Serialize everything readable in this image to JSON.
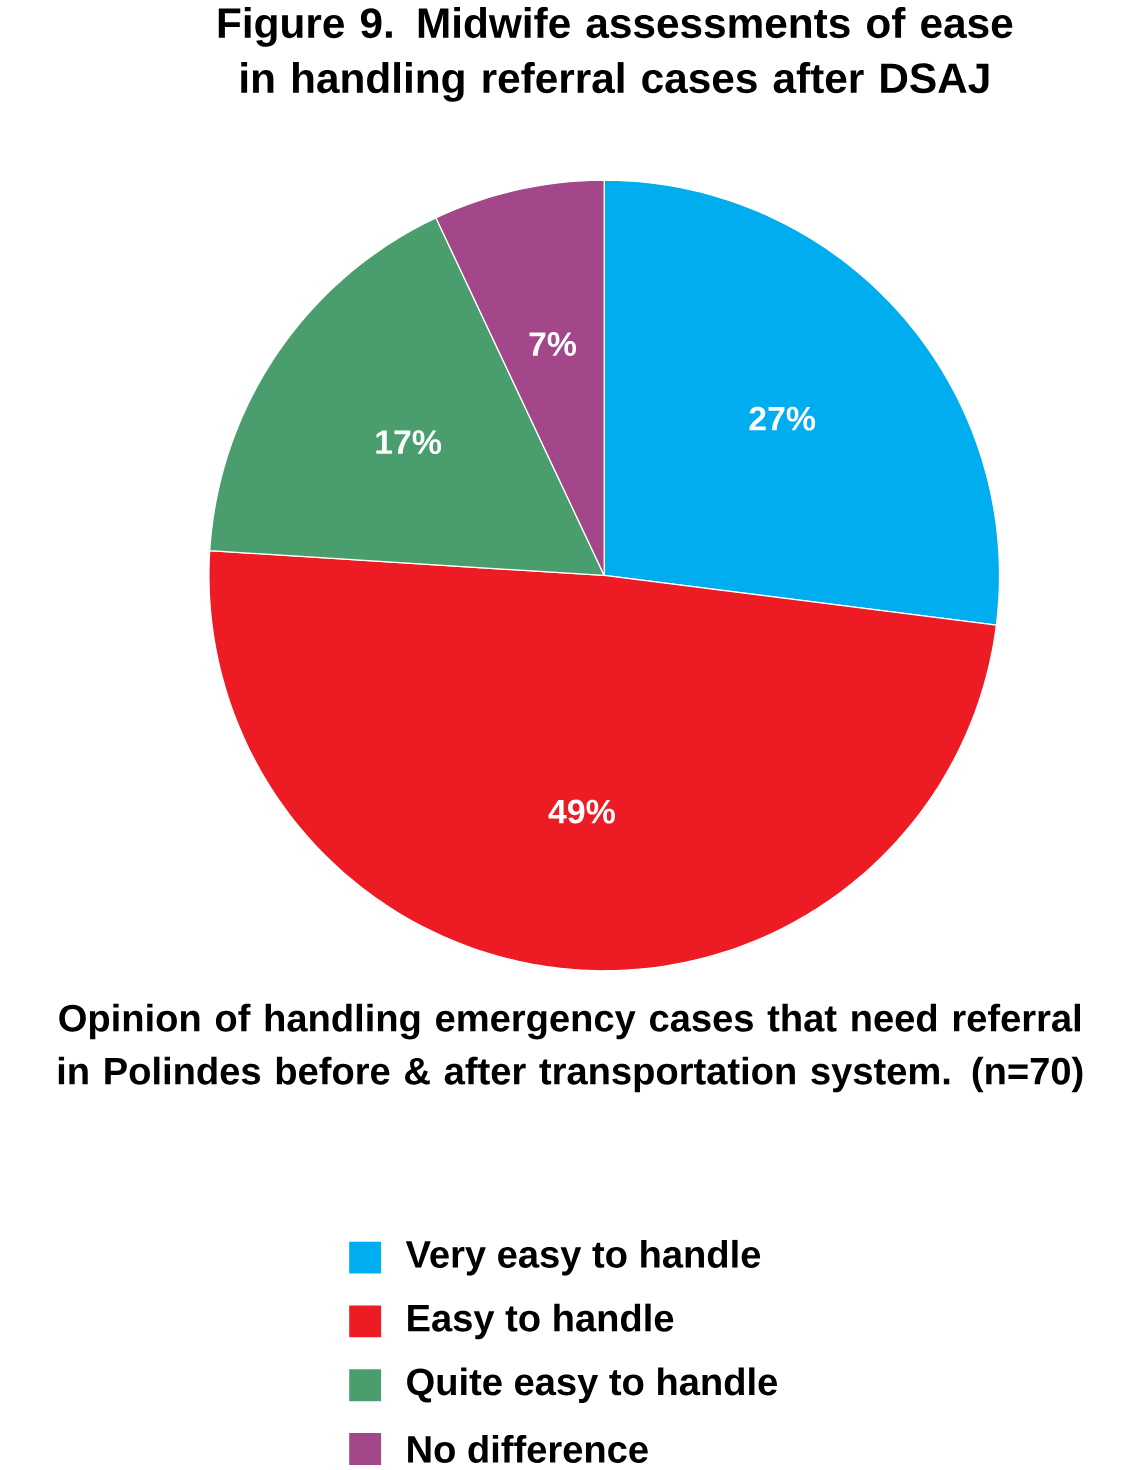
{
  "chart_data": {
    "type": "pie",
    "title": "Figure 9.  Midwife assessments of ease in handling referral cases after DSAJ",
    "subtitle": "Opinion of handling emergency cases that need referral in Polindes before & after transportation system. (n=70)",
    "categories": [
      "Very easy to handle",
      "Easy to handle",
      "Quite easy to handle",
      "No difference"
    ],
    "values": [
      27,
      49,
      17,
      7
    ],
    "colors": [
      "#00aeef",
      "#ed1c24",
      "#4a9e6e",
      "#a3478a"
    ],
    "value_labels": [
      "27%",
      "49%",
      "17%",
      "7%"
    ],
    "legend": "bottom"
  }
}
